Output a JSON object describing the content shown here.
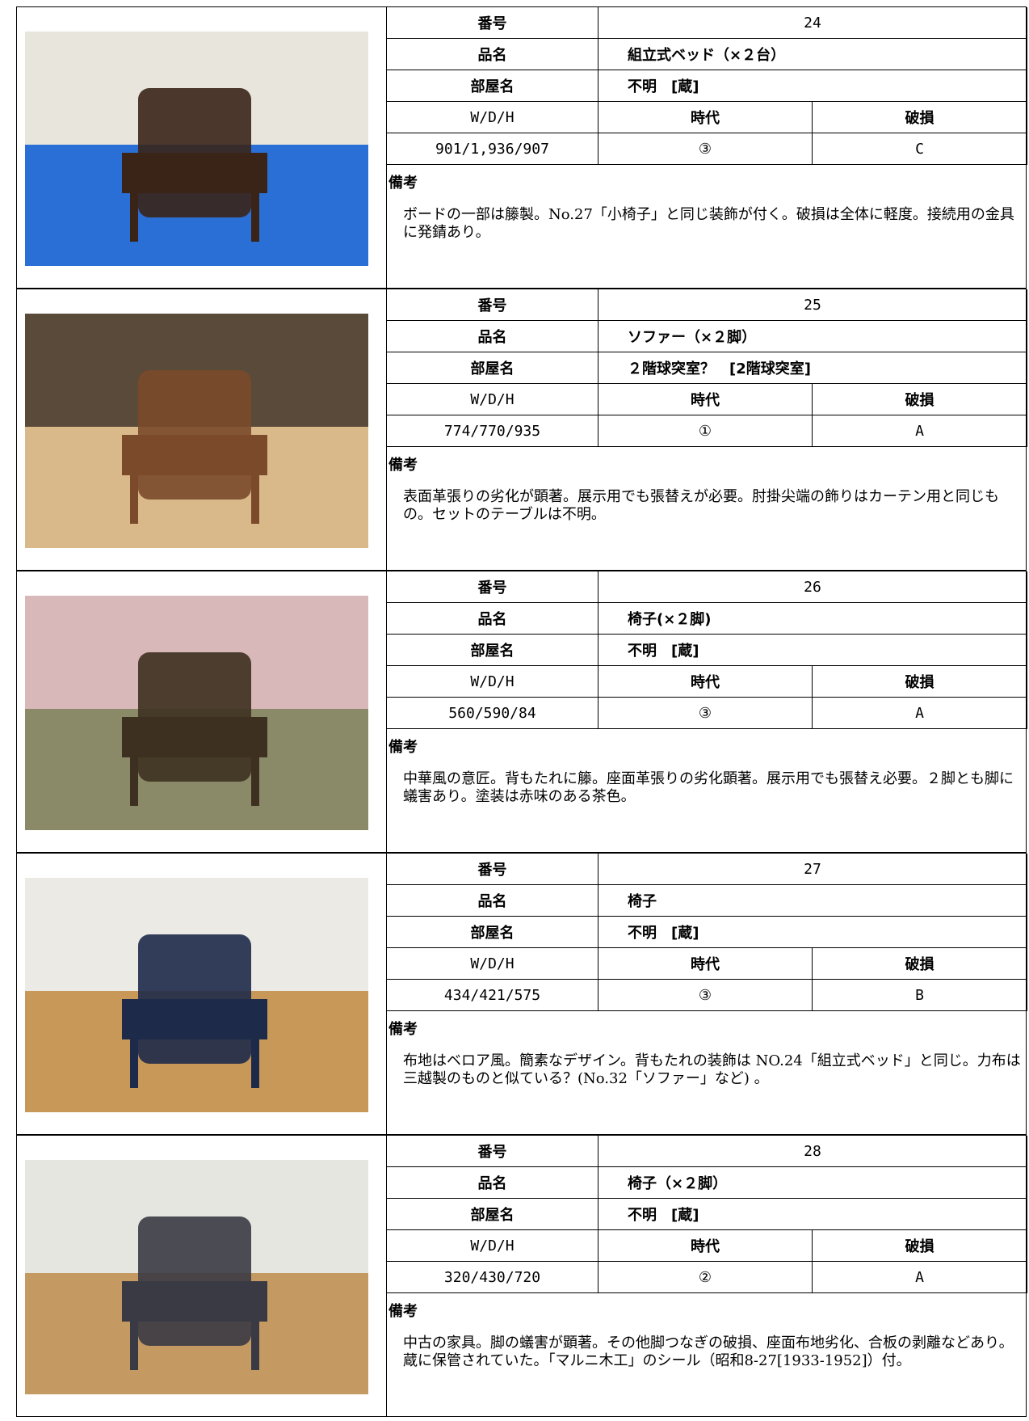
{
  "labels": {
    "number": "番号",
    "name": "品名",
    "room": "部屋名",
    "size": "W/D/H",
    "era": "時代",
    "damage": "破損",
    "remarks": "備考"
  },
  "entries": [
    {
      "number": 24,
      "name": "組立式ベッド（×２台）",
      "room": "不明　[蔵]",
      "size": "901/1,936/907",
      "era": "③",
      "damage": "C",
      "remarks": "ボードの一部は籐製。No.27「小椅子」と同じ装飾が付く。破損は全体に軽度。接続用の金具に発錆あり。"
    },
    {
      "number": 25,
      "name": "ソファー（×２脚）",
      "room": "２階球突室？　[2階球突室]",
      "size": "774/770/935",
      "era": "①",
      "damage": "A",
      "remarks": "表面革張りの劣化が顕著。展示用でも張替えが必要。肘掛尖端の飾りはカーテン用と同じもの。セットのテーブルは不明。"
    },
    {
      "number": 26,
      "name": "椅子(×２脚)",
      "room": "不明　[蔵]",
      "size": "560/590/84",
      "era": "③",
      "damage": "A",
      "remarks": "中華風の意匠。背もたれに籐。座面革張りの劣化顕著。展示用でも張替え必要。２脚とも脚に蟻害あり。塗装は赤味のある茶色。"
    },
    {
      "number": 27,
      "name": "椅子",
      "room": "不明　[蔵]",
      "size": "434/421/575",
      "era": "③",
      "damage": "B",
      "remarks": "布地はベロア風。簡素なデザイン。背もたれの装飾は NO.24「組立式ベッド」と同じ。力布は三越製のものと似ている？(No.32「ソファー」など) 。"
    },
    {
      "number": 28,
      "name": "椅子（×２脚）",
      "room": "不明　[蔵]",
      "size": "320/430/720",
      "era": "②",
      "damage": "A",
      "remarks": "中古の家具。脚の蟻害が顕著。その他脚つなぎの破損、座面布地劣化、合板の剥離などあり。蔵に保管されていた。「マルニ木工」のシール（昭和8-27[1933-1952]）付。"
    }
  ]
}
